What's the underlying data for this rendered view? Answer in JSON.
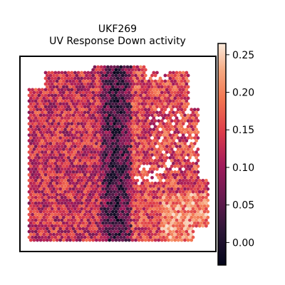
{
  "chart_data": {
    "type": "heatmap",
    "title_lines": [
      "UKF269",
      "UV Response Down activity"
    ],
    "colormap": "rocket",
    "colorbar": {
      "range": [
        -0.03,
        0.265
      ],
      "ticks": [
        0.0,
        0.05,
        0.1,
        0.15,
        0.2,
        0.25
      ],
      "tick_labels": [
        "0.00",
        "0.05",
        "0.10",
        "0.15",
        "0.20",
        "0.25"
      ],
      "placement": "right"
    },
    "grid": false,
    "axes_visible": false,
    "description_values": {
      "left_region_typical": 0.13,
      "central_band_typical": 0.02,
      "right_region_typical": 0.15,
      "max_observed": 0.26,
      "min_observed": -0.03
    }
  }
}
